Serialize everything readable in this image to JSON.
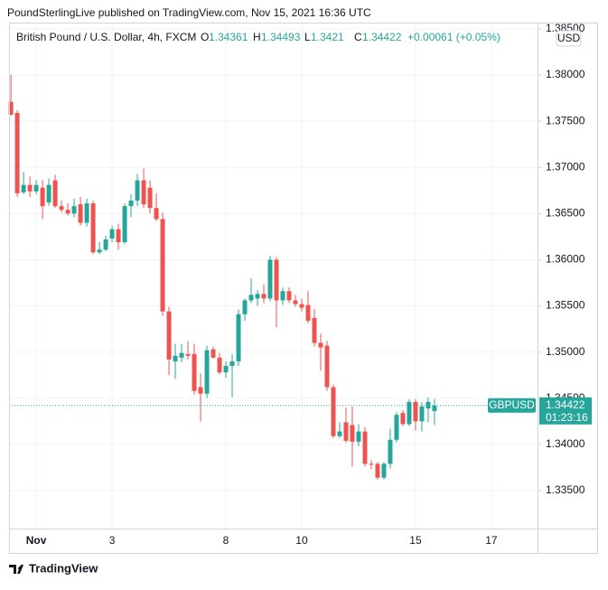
{
  "chart_data": {
    "type": "candlestick",
    "title": "PoundSterlingLive published on TradingView.com, Nov 15, 2021 16:36 UTC",
    "symbol": "British Pound / U.S. Dollar, 4h, FXCM",
    "legend_keys": [
      "O",
      "H",
      "L",
      "C"
    ],
    "change": "+0.00061 (+0.05%)",
    "currency": "USD",
    "ticker": "GBPUSD",
    "countdown": "01:23:16",
    "footer": "TradingView",
    "up_color": "#26a69a",
    "down_color": "#ef5350",
    "grid": true,
    "candles": [
      {
        "open": 1.3771,
        "high": 1.38,
        "low": 1.3756,
        "close": 1.3757
      },
      {
        "open": 1.3759,
        "high": 1.3762,
        "low": 1.3668,
        "close": 1.3672
      },
      {
        "open": 1.3673,
        "high": 1.3695,
        "low": 1.3671,
        "close": 1.3681
      },
      {
        "open": 1.3681,
        "high": 1.369,
        "low": 1.3668,
        "close": 1.3674
      },
      {
        "open": 1.3674,
        "high": 1.3686,
        "low": 1.3671,
        "close": 1.3681
      },
      {
        "open": 1.3678,
        "high": 1.3686,
        "low": 1.3644,
        "close": 1.3658
      },
      {
        "open": 1.3662,
        "high": 1.3688,
        "low": 1.3658,
        "close": 1.3681
      },
      {
        "open": 1.3686,
        "high": 1.3692,
        "low": 1.3656,
        "close": 1.3658
      },
      {
        "open": 1.3658,
        "high": 1.3664,
        "low": 1.3651,
        "close": 1.3654
      },
      {
        "open": 1.3654,
        "high": 1.3661,
        "low": 1.3648,
        "close": 1.365
      },
      {
        "open": 1.365,
        "high": 1.3666,
        "low": 1.3646,
        "close": 1.3658
      },
      {
        "open": 1.366,
        "high": 1.3668,
        "low": 1.3637,
        "close": 1.364
      },
      {
        "open": 1.364,
        "high": 1.3666,
        "low": 1.3636,
        "close": 1.3661
      },
      {
        "open": 1.3661,
        "high": 1.3664,
        "low": 1.3606,
        "close": 1.3608
      },
      {
        "open": 1.3608,
        "high": 1.3619,
        "low": 1.3606,
        "close": 1.3611
      },
      {
        "open": 1.3611,
        "high": 1.3626,
        "low": 1.3609,
        "close": 1.3622
      },
      {
        "open": 1.3623,
        "high": 1.3637,
        "low": 1.3619,
        "close": 1.3633
      },
      {
        "open": 1.3633,
        "high": 1.3639,
        "low": 1.3611,
        "close": 1.3619
      },
      {
        "open": 1.3619,
        "high": 1.3661,
        "low": 1.3617,
        "close": 1.3658
      },
      {
        "open": 1.3658,
        "high": 1.3671,
        "low": 1.3646,
        "close": 1.3664
      },
      {
        "open": 1.3664,
        "high": 1.3693,
        "low": 1.3658,
        "close": 1.3686
      },
      {
        "open": 1.3686,
        "high": 1.3699,
        "low": 1.3656,
        "close": 1.366
      },
      {
        "open": 1.3678,
        "high": 1.3686,
        "low": 1.365,
        "close": 1.3656
      },
      {
        "open": 1.3656,
        "high": 1.3672,
        "low": 1.3642,
        "close": 1.3644
      },
      {
        "open": 1.3644,
        "high": 1.3651,
        "low": 1.3539,
        "close": 1.3544
      },
      {
        "open": 1.3544,
        "high": 1.3549,
        "low": 1.3475,
        "close": 1.3492
      },
      {
        "open": 1.349,
        "high": 1.3509,
        "low": 1.3471,
        "close": 1.3496
      },
      {
        "open": 1.3494,
        "high": 1.3509,
        "low": 1.3489,
        "close": 1.3499
      },
      {
        "open": 1.3498,
        "high": 1.3512,
        "low": 1.3492,
        "close": 1.3496
      },
      {
        "open": 1.3498,
        "high": 1.3509,
        "low": 1.3454,
        "close": 1.3458
      },
      {
        "open": 1.3462,
        "high": 1.3477,
        "low": 1.3425,
        "close": 1.3455
      },
      {
        "open": 1.3455,
        "high": 1.3507,
        "low": 1.345,
        "close": 1.3502
      },
      {
        "open": 1.3503,
        "high": 1.3506,
        "low": 1.3493,
        "close": 1.3494
      },
      {
        "open": 1.3494,
        "high": 1.3499,
        "low": 1.3476,
        "close": 1.3478
      },
      {
        "open": 1.3478,
        "high": 1.349,
        "low": 1.3472,
        "close": 1.3485
      },
      {
        "open": 1.3485,
        "high": 1.3498,
        "low": 1.3451,
        "close": 1.349
      },
      {
        "open": 1.349,
        "high": 1.3546,
        "low": 1.3485,
        "close": 1.3541
      },
      {
        "open": 1.3541,
        "high": 1.3558,
        "low": 1.3534,
        "close": 1.3556
      },
      {
        "open": 1.3556,
        "high": 1.358,
        "low": 1.3553,
        "close": 1.3562
      },
      {
        "open": 1.3558,
        "high": 1.3567,
        "low": 1.355,
        "close": 1.3563
      },
      {
        "open": 1.3563,
        "high": 1.3573,
        "low": 1.3553,
        "close": 1.3558
      },
      {
        "open": 1.3558,
        "high": 1.3604,
        "low": 1.3555,
        "close": 1.36
      },
      {
        "open": 1.36,
        "high": 1.3603,
        "low": 1.3527,
        "close": 1.3556
      },
      {
        "open": 1.3556,
        "high": 1.357,
        "low": 1.3551,
        "close": 1.3566
      },
      {
        "open": 1.3566,
        "high": 1.357,
        "low": 1.3553,
        "close": 1.3556
      },
      {
        "open": 1.3556,
        "high": 1.3562,
        "low": 1.3549,
        "close": 1.3552
      },
      {
        "open": 1.3552,
        "high": 1.3558,
        "low": 1.3544,
        "close": 1.3548
      },
      {
        "open": 1.3551,
        "high": 1.3566,
        "low": 1.3531,
        "close": 1.3534
      },
      {
        "open": 1.3537,
        "high": 1.3547,
        "low": 1.3506,
        "close": 1.351
      },
      {
        "open": 1.351,
        "high": 1.352,
        "low": 1.348,
        "close": 1.3505
      },
      {
        "open": 1.3507,
        "high": 1.3512,
        "low": 1.3458,
        "close": 1.3462
      },
      {
        "open": 1.3462,
        "high": 1.3465,
        "low": 1.3407,
        "close": 1.3409
      },
      {
        "open": 1.3409,
        "high": 1.3424,
        "low": 1.3407,
        "close": 1.3414
      },
      {
        "open": 1.3424,
        "high": 1.344,
        "low": 1.3402,
        "close": 1.3404
      },
      {
        "open": 1.3421,
        "high": 1.3441,
        "low": 1.3376,
        "close": 1.3403
      },
      {
        "open": 1.3403,
        "high": 1.3422,
        "low": 1.3398,
        "close": 1.3414
      },
      {
        "open": 1.3414,
        "high": 1.3419,
        "low": 1.3376,
        "close": 1.3379
      },
      {
        "open": 1.3379,
        "high": 1.3383,
        "low": 1.3373,
        "close": 1.3378
      },
      {
        "open": 1.3379,
        "high": 1.3381,
        "low": 1.3362,
        "close": 1.3364
      },
      {
        "open": 1.3364,
        "high": 1.3381,
        "low": 1.3362,
        "close": 1.3379
      },
      {
        "open": 1.3379,
        "high": 1.3417,
        "low": 1.3374,
        "close": 1.3405
      },
      {
        "open": 1.3405,
        "high": 1.3435,
        "low": 1.3402,
        "close": 1.3432
      },
      {
        "open": 1.3434,
        "high": 1.3437,
        "low": 1.342,
        "close": 1.3422
      },
      {
        "open": 1.3422,
        "high": 1.3449,
        "low": 1.342,
        "close": 1.3446
      },
      {
        "open": 1.3446,
        "high": 1.3449,
        "low": 1.3415,
        "close": 1.3425
      },
      {
        "open": 1.3425,
        "high": 1.3446,
        "low": 1.3414,
        "close": 1.3441
      },
      {
        "open": 1.3439,
        "high": 1.3451,
        "low": 1.3424,
        "close": 1.3446
      },
      {
        "open": 1.34361,
        "high": 1.34493,
        "low": 1.3421,
        "close": 1.34422
      }
    ],
    "xlim": [
      -0.3,
      83.3
    ],
    "xticks": [
      {
        "value": 4,
        "label": "Nov"
      },
      {
        "value": 16,
        "label": "3"
      },
      {
        "value": 34,
        "label": "8"
      },
      {
        "value": 46,
        "label": "10"
      },
      {
        "value": 64,
        "label": "15"
      },
      {
        "value": 76,
        "label": "17"
      }
    ],
    "ylim": [
      1.33089,
      1.38568
    ],
    "yticks": [
      {
        "value": 1.335,
        "label": "1.33500"
      },
      {
        "value": 1.34,
        "label": "1.34000"
      },
      {
        "value": 1.345,
        "label": "1.34500"
      },
      {
        "value": 1.35,
        "label": "1.35000"
      },
      {
        "value": 1.355,
        "label": "1.35500"
      },
      {
        "value": 1.36,
        "label": "1.36000"
      },
      {
        "value": 1.365,
        "label": "1.36500"
      },
      {
        "value": 1.37,
        "label": "1.37000"
      },
      {
        "value": 1.375,
        "label": "1.37500"
      },
      {
        "value": 1.38,
        "label": "1.38000"
      },
      {
        "value": 1.385,
        "label": "1.38500"
      }
    ]
  }
}
